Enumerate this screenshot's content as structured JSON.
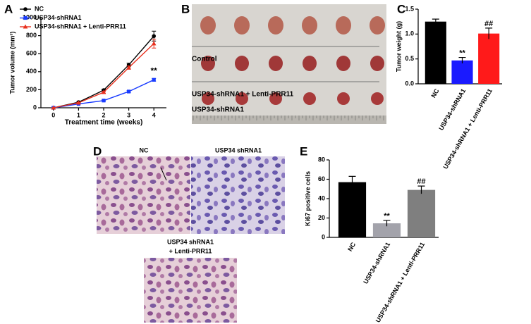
{
  "panels": {
    "letters": [
      "A",
      "B",
      "C",
      "D",
      "E"
    ]
  },
  "photo_b": {
    "labels": [
      "Control",
      "USP34-shRNA1 + Lenti-PRR11",
      "USP34-shRNA1"
    ]
  },
  "photo_d": {
    "labels": [
      "NC",
      "USP34 shRNA1"
    ],
    "bottom_label": [
      "USP34 shRNA1",
      "+ Lenti-PRR11"
    ]
  },
  "chart_data": [
    {
      "type": "line",
      "x": [
        0,
        1,
        2,
        3,
        4
      ],
      "xlim": [
        -0.5,
        4.5
      ],
      "xticks": [
        0,
        1,
        2,
        3,
        4
      ],
      "ylim": [
        0,
        1000
      ],
      "yticks": [
        0,
        200,
        400,
        600,
        800,
        1000
      ],
      "xlabel": "Treatment time (weeks)",
      "ylabel": "Tumor volume (mm³)",
      "legend": "upper left",
      "series": [
        {
          "name": "NC",
          "color": "#000000",
          "marker": "circle",
          "values": [
            0,
            62,
            195,
            475,
            795
          ],
          "errors": [
            0,
            6,
            12,
            20,
            55
          ]
        },
        {
          "name": "USP34-shRNA1",
          "color": "#1a3cff",
          "marker": "square",
          "values": [
            0,
            42,
            80,
            180,
            310
          ],
          "errors": [
            0,
            4,
            6,
            10,
            15
          ],
          "annotations": [
            null,
            null,
            null,
            null,
            "**"
          ]
        },
        {
          "name": "USP34-shRNA1 + Lenti-PRR11",
          "color": "#e8301e",
          "marker": "triangle",
          "values": [
            0,
            55,
            172,
            445,
            712
          ],
          "errors": [
            0,
            5,
            10,
            18,
            50
          ]
        }
      ]
    },
    {
      "type": "bar",
      "categories": [
        "NC",
        "USP34-shRNA1",
        "USP34-shRNA1 + Lenti-PRR11"
      ],
      "values": [
        1.25,
        0.47,
        1.01
      ],
      "errors": [
        0.05,
        0.06,
        0.11
      ],
      "colors": [
        "#000000",
        "#1a1aff",
        "#ff1a1a"
      ],
      "annotations": [
        null,
        "**",
        "##"
      ],
      "ylabel": "Tumor weight (g)",
      "ylim": [
        0,
        1.5
      ],
      "yticks": [
        {
          "value": 0,
          "label": "0.0"
        },
        {
          "value": 0.5,
          "label": "0.5"
        },
        {
          "value": 1,
          "label": "1.0"
        },
        {
          "value": 1.5,
          "label": "1.5"
        }
      ]
    },
    {
      "type": "bar",
      "categories": [
        "NC",
        "USP34-shRNA1",
        "USP34-shRNA1 + Lenti-PRR11"
      ],
      "values": [
        57,
        14.5,
        49
      ],
      "errors": [
        6,
        3,
        4
      ],
      "colors": [
        "#000000",
        "#a3a3ab",
        "#7f7f7f"
      ],
      "annotations": [
        null,
        "**",
        "##"
      ],
      "ylabel": "Ki67 positive cells",
      "ylim": [
        0,
        80
      ],
      "yticks": [
        0,
        20,
        40,
        60,
        80
      ]
    }
  ]
}
